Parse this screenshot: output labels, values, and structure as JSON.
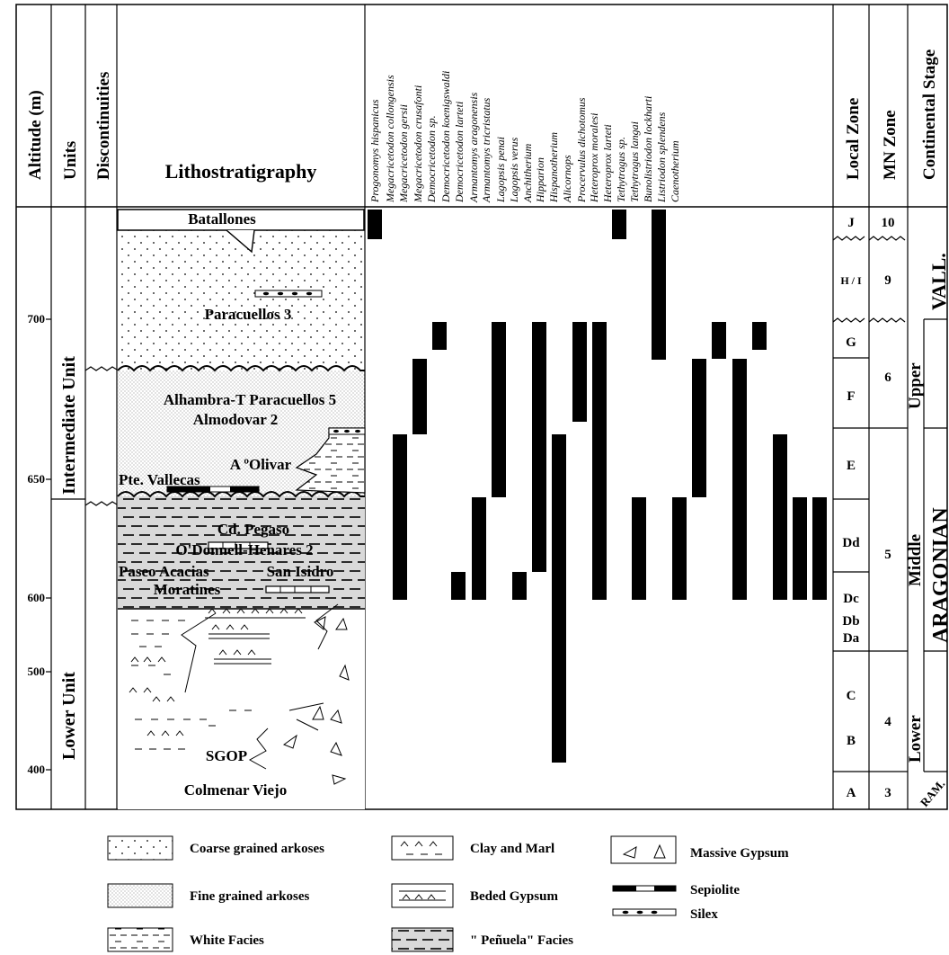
{
  "headers": {
    "altitude": "Altitude (m)",
    "units": "Units",
    "discontinuities": "Discontinuities",
    "lithostratigraphy": "Lithostratigraphy",
    "local_zone": "Local Zone",
    "mn_zone": "MN Zone",
    "continental_stage": "Continental Stage"
  },
  "altitude_ticks": [
    "700",
    "650",
    "600",
    "500",
    "400"
  ],
  "units": [
    "Intermediate Unit",
    "Lower Unit"
  ],
  "locality_labels": {
    "batallones": "Batallones",
    "paracuellos3": "Paracuellos 3",
    "alhambra": "Alhambra-T Paracuellos 5",
    "almodovar": "Almodovar 2",
    "olivar": "A ºOlivar",
    "vallecas": "Pte. Vallecas",
    "pegaso": "Cd. Pegaso",
    "odonnell": "O'Donnell-Henares 2",
    "acacias": "Paseo Acacias",
    "isidro": "San Isidro",
    "moratines": "Moratines",
    "sgop": "SGOP",
    "colmenar": "Colmenar Viejo"
  },
  "taxa": [
    "Progonomys hispanicus",
    "Megacricetodon collongensis",
    "Megacricetodon gersii",
    "Megacricetodon crusafonti",
    "Democricetodon sp.",
    "Democricetodon koenigswaldi",
    "Democricetodon larteti",
    "Armantomys aragonensis",
    "Armantomys tricristatus",
    "Lagopsis penai",
    "Lagopsis verus",
    "Anchitherium",
    "Hipparion",
    "Hispanotherium",
    "Alicornops",
    "Procervulus dichotomus",
    "Heteroprox moralesi",
    "Heteroprox larteti",
    "Tethytragus sp.",
    "Tethytragus langai",
    "Bunolistriodon lockharti",
    "Listriodon splendens",
    "Caenotherium"
  ],
  "local_zones": [
    "J",
    "H / I",
    "G",
    "F",
    "E",
    "Dd",
    "Dc",
    "Db",
    "Da",
    "C",
    "B",
    "A"
  ],
  "mn_zones": [
    "10",
    "9",
    "6",
    "5",
    "4",
    "3"
  ],
  "stages": {
    "vallesian": "VALL.",
    "aragonian": "ARAGONIAN",
    "upper": "Upper",
    "middle": "Middle",
    "lower": "Lower",
    "ramblian": "RAM."
  },
  "legend": {
    "coarse": "Coarse grained arkoses",
    "fine": "Fine grained arkoses",
    "white": "White Facies",
    "clay": "Clay and Marl",
    "beded": "Beded Gypsum",
    "penuela": "\" Peñuela\" Facies",
    "massive": "Massive Gypsum",
    "sepiolite": "Sepiolite",
    "silex": "Silex"
  },
  "colors": {
    "ink": "#000000",
    "penuela_fill": "#d9d9d9",
    "background": "#ffffff"
  }
}
